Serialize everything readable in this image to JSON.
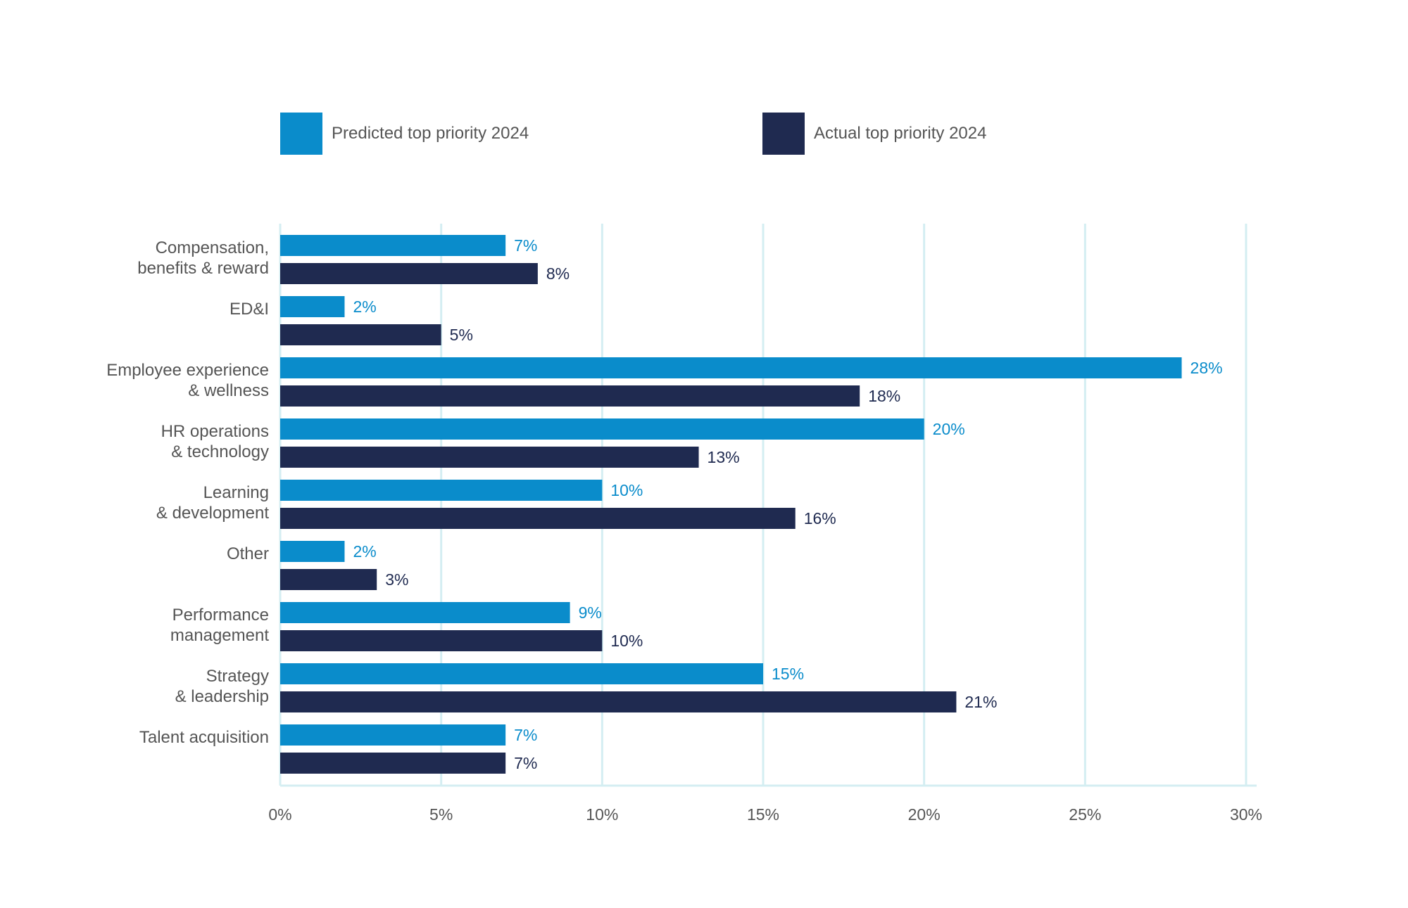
{
  "chart_data": {
    "type": "bar",
    "orientation": "horizontal",
    "categories": [
      [
        "Compensation,",
        "benefits & reward"
      ],
      [
        "ED&I"
      ],
      [
        "Employee experience",
        "& wellness"
      ],
      [
        "HR operations",
        "& technology"
      ],
      [
        "Learning",
        "& development"
      ],
      [
        "Other"
      ],
      [
        "Performance",
        "management"
      ],
      [
        "Strategy",
        "& leadership"
      ],
      [
        "Talent acquisition"
      ]
    ],
    "series": [
      {
        "name": "Predicted top priority 2024",
        "color": "#0a8ccb",
        "values": [
          7,
          2,
          28,
          20,
          10,
          2,
          9,
          15,
          7
        ],
        "labels": [
          "7%",
          "2%",
          "28%",
          "20%",
          "10%",
          "2%",
          "9%",
          "15%",
          "7%"
        ]
      },
      {
        "name": "Actual top priority 2024",
        "color": "#1f2a50",
        "values": [
          8,
          5,
          18,
          13,
          16,
          3,
          10,
          21,
          7
        ],
        "labels": [
          "8%",
          "5%",
          "18%",
          "13%",
          "16%",
          "3%",
          "10%",
          "21%",
          "7%"
        ]
      }
    ],
    "xlim": [
      0,
      30
    ],
    "xticks": [
      0,
      5,
      10,
      15,
      20,
      25,
      30
    ],
    "xtick_labels": [
      "0%",
      "5%",
      "10%",
      "15%",
      "20%",
      "25%",
      "30%"
    ],
    "grid": true,
    "legend_position": "top",
    "grid_color": "#d4eef2",
    "tick_label_color": "#555555",
    "category_label_color": "#555555"
  }
}
